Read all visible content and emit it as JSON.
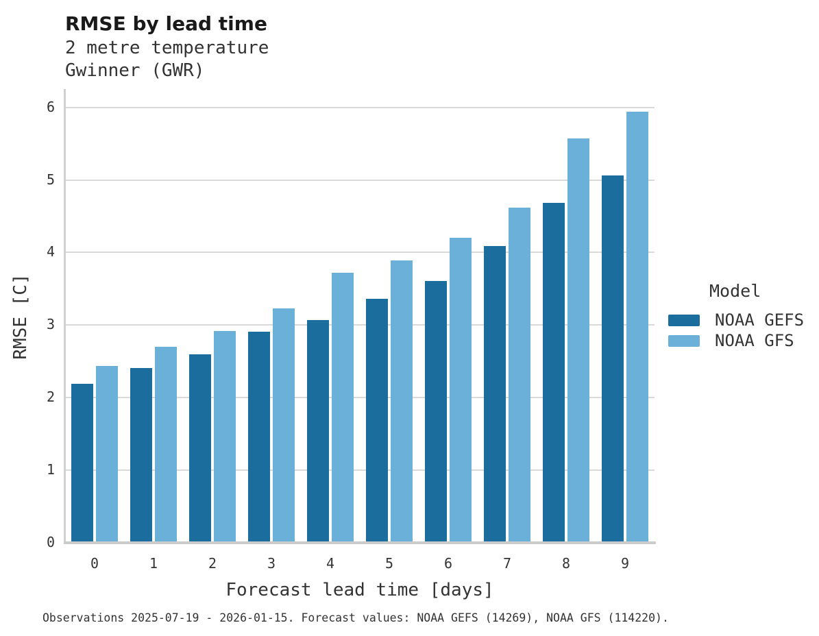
{
  "header": {
    "title": "RMSE by lead time",
    "subtitle_line1": "2 metre temperature",
    "subtitle_line2": "Gwinner (GWR)"
  },
  "footer": {
    "caption": "Observations 2025-07-19 - 2026-01-15. Forecast values: NOAA GEFS (14269), NOAA GFS (114220)."
  },
  "legend": {
    "title": "Model",
    "entries": [
      {
        "label": "NOAA GEFS",
        "color": "#1b6d9e"
      },
      {
        "label": "NOAA GFS",
        "color": "#6ab0d8"
      }
    ]
  },
  "colors": {
    "gefs_bar": "#1b6d9e",
    "gfs_bar": "#6ab0d8",
    "gridline": "#d9d9d9",
    "baseline": "#cccccc",
    "text": "#333333",
    "title_text": "#1a1a1a",
    "background": "#ffffff"
  },
  "chart_data": {
    "type": "bar",
    "title": "RMSE by lead time",
    "subtitle": [
      "2 metre temperature",
      "Gwinner (GWR)"
    ],
    "xlabel": "Forecast lead time [days]",
    "ylabel": "RMSE [C]",
    "categories": [
      "0",
      "1",
      "2",
      "3",
      "4",
      "5",
      "6",
      "7",
      "8",
      "9"
    ],
    "series": [
      {
        "name": "NOAA GEFS",
        "color": "#1b6d9e",
        "values": [
          2.19,
          2.41,
          2.6,
          2.91,
          3.07,
          3.36,
          3.61,
          4.09,
          4.68,
          5.06
        ]
      },
      {
        "name": "NOAA GFS",
        "color": "#6ab0d8",
        "values": [
          2.44,
          2.7,
          2.92,
          3.23,
          3.72,
          3.89,
          4.2,
          4.62,
          5.57,
          5.94
        ]
      }
    ],
    "ylim": [
      0,
      6.25
    ],
    "yticks": [
      0,
      1,
      2,
      3,
      4,
      5,
      6
    ],
    "grid": true,
    "legend_title": "Model",
    "legend_position": "right"
  }
}
